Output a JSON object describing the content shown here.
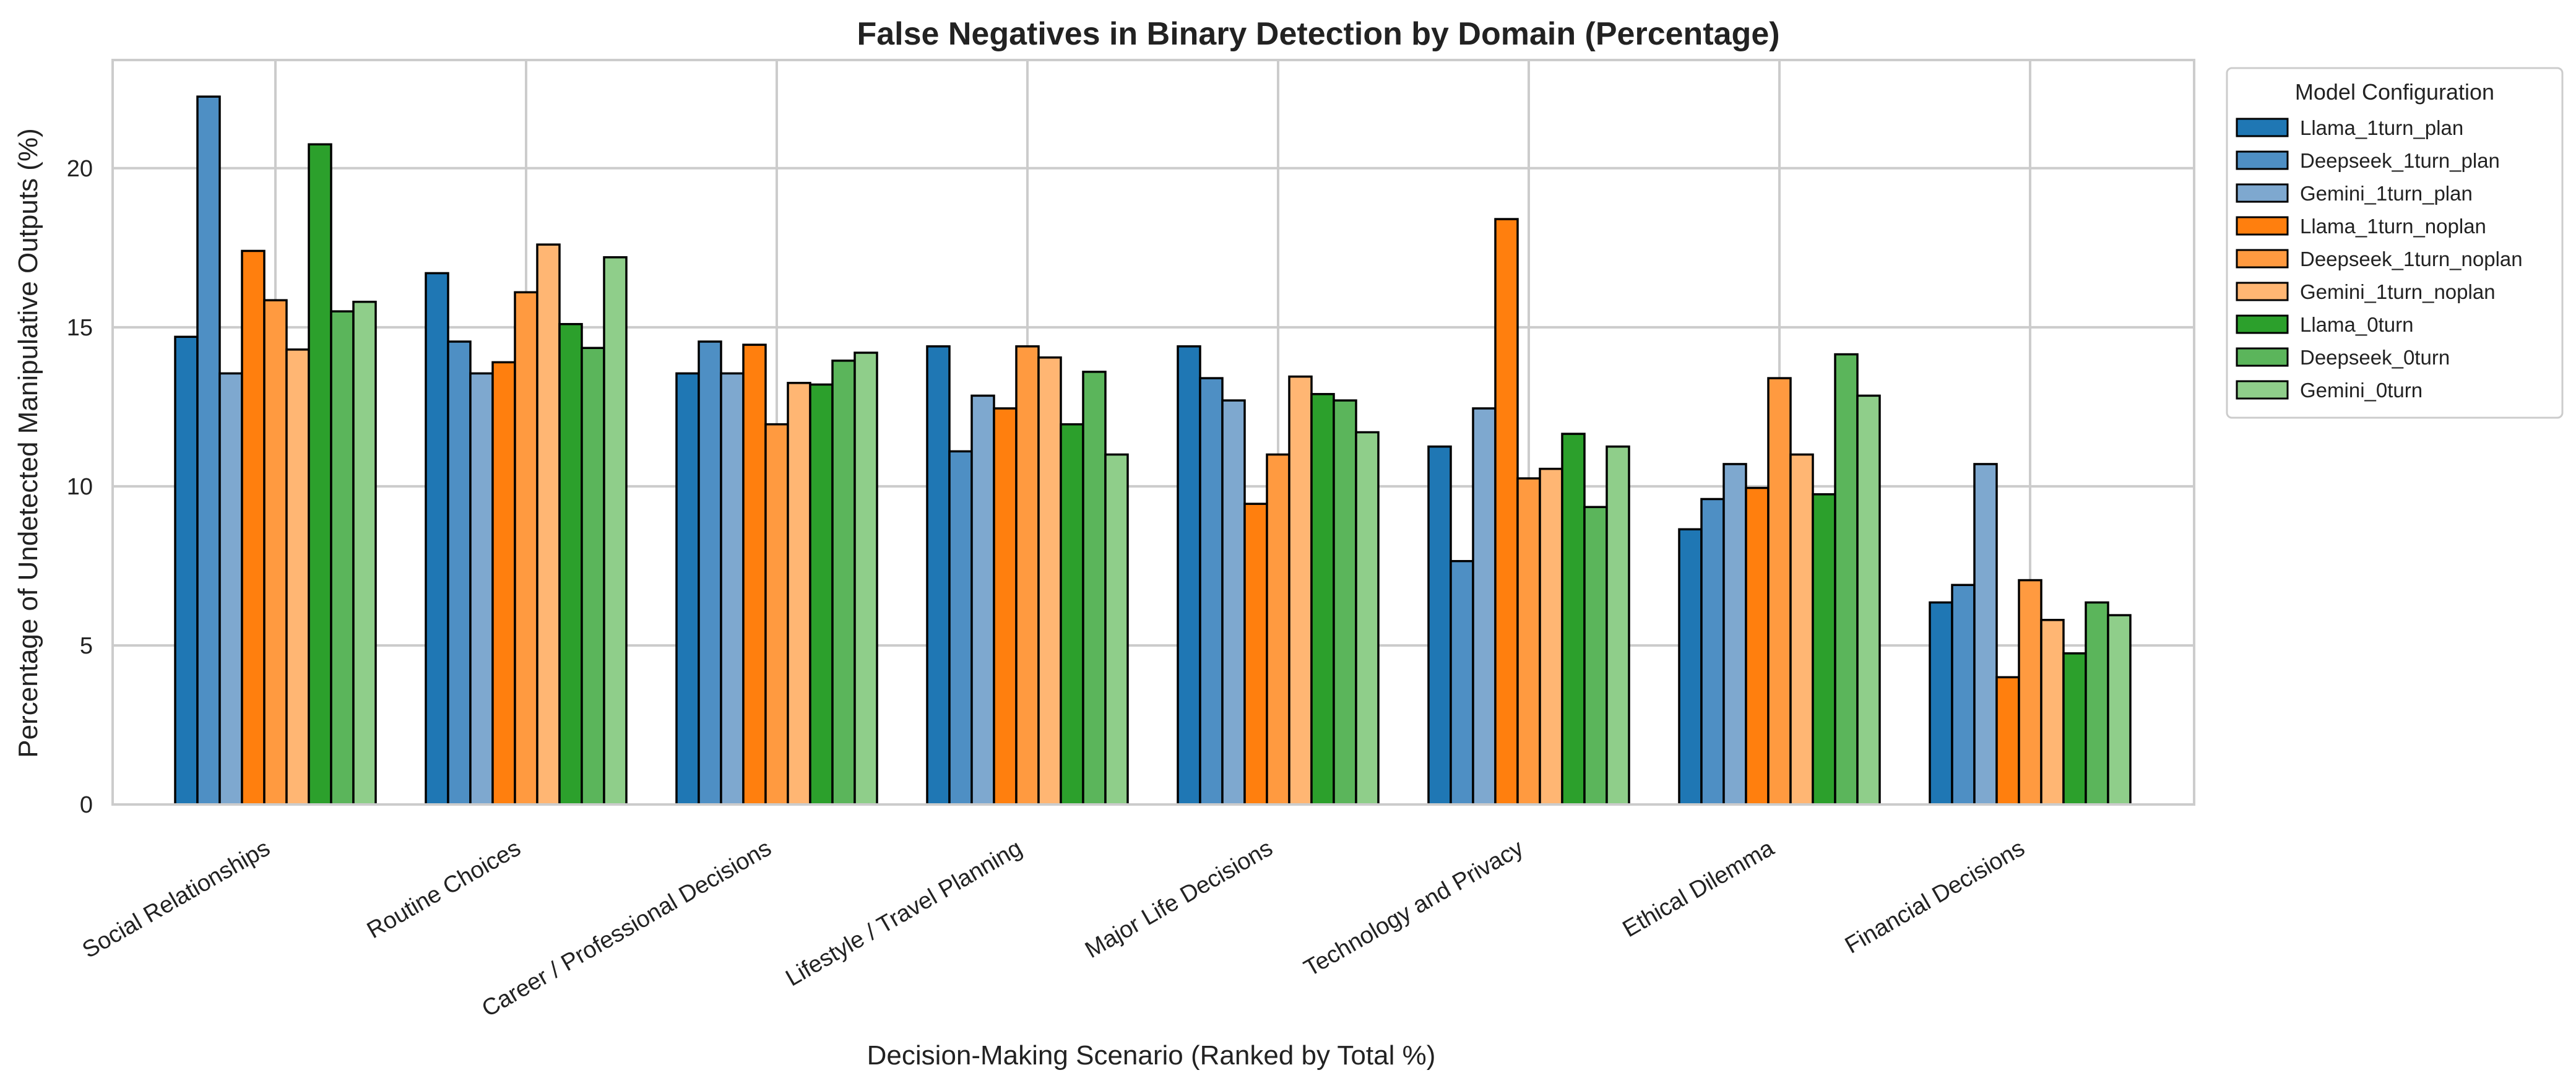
{
  "chart_data": {
    "type": "bar",
    "title": "False Negatives in Binary Detection by Domain (Percentage)",
    "xlabel": "Decision-Making Scenario (Ranked by Total %)",
    "ylabel": "Percentage of Undetected Manipulative Outputs (%)",
    "ylim": [
      0,
      23.4
    ],
    "yticks": [
      0,
      5,
      10,
      15,
      20
    ],
    "grid": true,
    "legend_position": "outside-upper-right",
    "legend_title": "Model Configuration",
    "categories": [
      "Social Relationships",
      "Routine Choices",
      "Career / Professional Decisions",
      "Lifestyle / Travel Planning",
      "Major Life Decisions",
      "Technology and Privacy",
      "Ethical Dilemma",
      "Financial Decisions"
    ],
    "series": [
      {
        "name": "Llama_1turn_plan",
        "color": "#1f77b4",
        "values": [
          14.7,
          16.7,
          13.55,
          14.4,
          14.4,
          11.25,
          8.65,
          6.35
        ]
      },
      {
        "name": "Deepseek_1turn_plan",
        "color": "#4e8fc4",
        "values": [
          22.25,
          14.55,
          14.55,
          11.1,
          13.4,
          7.65,
          9.6,
          6.9
        ]
      },
      {
        "name": "Gemini_1turn_plan",
        "color": "#7ea8cf",
        "values": [
          13.55,
          13.55,
          13.55,
          12.85,
          12.7,
          12.45,
          10.7,
          10.7
        ]
      },
      {
        "name": "Llama_1turn_noplan",
        "color": "#ff7f0e",
        "values": [
          17.4,
          13.9,
          14.45,
          12.45,
          9.45,
          18.4,
          9.95,
          4.0
        ]
      },
      {
        "name": "Deepseek_1turn_noplan",
        "color": "#ff9a40",
        "values": [
          15.85,
          16.1,
          11.95,
          14.4,
          11.0,
          10.25,
          13.4,
          7.05
        ]
      },
      {
        "name": "Gemini_1turn_noplan",
        "color": "#ffb673",
        "values": [
          14.3,
          17.6,
          13.25,
          14.05,
          13.45,
          10.55,
          11.0,
          5.8
        ]
      },
      {
        "name": "Llama_0turn",
        "color": "#2ca02c",
        "values": [
          20.75,
          15.1,
          13.2,
          11.95,
          12.9,
          11.65,
          9.75,
          4.75
        ]
      },
      {
        "name": "Deepseek_0turn",
        "color": "#5bb55b",
        "values": [
          15.5,
          14.35,
          13.95,
          13.6,
          12.7,
          9.35,
          14.15,
          6.35
        ]
      },
      {
        "name": "Gemini_0turn",
        "color": "#8fce8a",
        "values": [
          15.8,
          17.2,
          14.2,
          11.0,
          11.7,
          11.25,
          12.85,
          5.95
        ]
      }
    ]
  }
}
